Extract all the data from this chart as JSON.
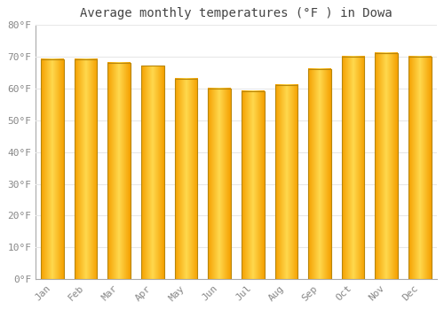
{
  "title": "Average monthly temperatures (°F ) in Dowa",
  "months": [
    "Jan",
    "Feb",
    "Mar",
    "Apr",
    "May",
    "Jun",
    "Jul",
    "Aug",
    "Sep",
    "Oct",
    "Nov",
    "Dec"
  ],
  "values": [
    69,
    69,
    68,
    67,
    63,
    60,
    59,
    61,
    66,
    70,
    71,
    70
  ],
  "ylim": [
    0,
    80
  ],
  "yticks": [
    0,
    10,
    20,
    30,
    40,
    50,
    60,
    70,
    80
  ],
  "ytick_labels": [
    "0°F",
    "10°F",
    "20°F",
    "30°F",
    "40°F",
    "50°F",
    "60°F",
    "70°F",
    "80°F"
  ],
  "bar_color_center": "#FFD84D",
  "bar_color_edge": "#F5A000",
  "bar_border_color": "#B8860B",
  "background_color": "#FFFFFF",
  "plot_bg_color": "#FFFFFF",
  "grid_color": "#E8E8E8",
  "title_fontsize": 10,
  "tick_fontsize": 8,
  "title_color": "#444444",
  "tick_color": "#888888"
}
